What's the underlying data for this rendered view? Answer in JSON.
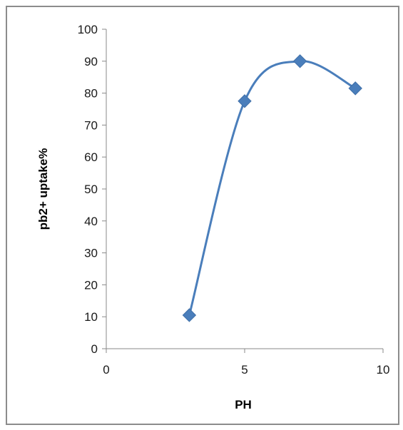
{
  "chart_data": {
    "type": "scatter",
    "xlabel": "PH",
    "ylabel": "pb2+ uptake%",
    "xlim": [
      0,
      10
    ],
    "ylim": [
      0,
      100
    ],
    "x_ticks": [
      0,
      5,
      10
    ],
    "y_ticks": [
      0,
      10,
      20,
      30,
      40,
      50,
      60,
      70,
      80,
      90,
      100
    ],
    "grid": false,
    "legend": "none",
    "smooth_line": true,
    "marker": "diamond",
    "series": [
      {
        "color": "#4a7ebb",
        "points": [
          {
            "x": 3,
            "y": 10.5
          },
          {
            "x": 5,
            "y": 77.5
          },
          {
            "x": 7,
            "y": 90
          },
          {
            "x": 9,
            "y": 81.5
          }
        ]
      }
    ]
  }
}
